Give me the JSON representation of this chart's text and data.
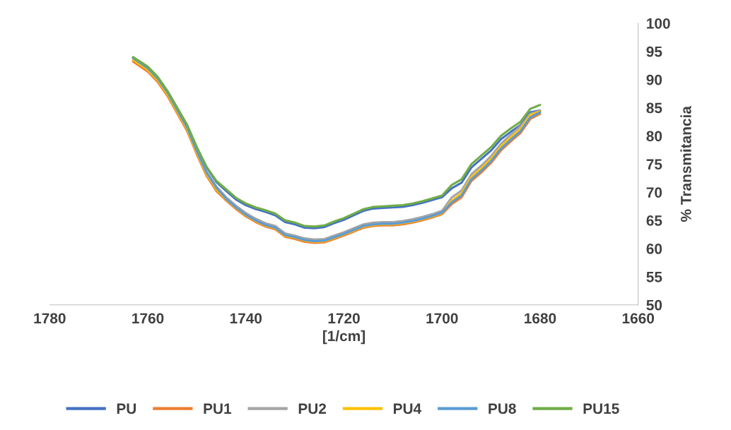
{
  "chart_data": {
    "type": "line",
    "xlabel": "[1/cm]",
    "ylabel": "% Transmitancia",
    "xlim": [
      1780,
      1660
    ],
    "xticks": [
      1780,
      1760,
      1740,
      1720,
      1700,
      1680,
      1660
    ],
    "ylim": [
      50,
      100
    ],
    "yticks": [
      50,
      55,
      60,
      65,
      70,
      75,
      80,
      85,
      90,
      95,
      100
    ],
    "grid": false,
    "legend": "bottom",
    "marker": "none",
    "line_style": "solid",
    "x": [
      1763,
      1760,
      1758,
      1756,
      1754,
      1752,
      1750,
      1748,
      1746,
      1744,
      1742,
      1740,
      1738,
      1736,
      1734,
      1732,
      1730,
      1728,
      1726,
      1724,
      1722,
      1720,
      1718,
      1716,
      1714,
      1712,
      1710,
      1708,
      1706,
      1704,
      1702,
      1700,
      1698,
      1696,
      1694,
      1692,
      1690,
      1688,
      1686,
      1684,
      1682,
      1680
    ],
    "series": [
      {
        "name": "PU",
        "color": "#4472c4",
        "values": [
          93.9,
          92.2,
          90.4,
          87.9,
          84.9,
          81.9,
          77.9,
          74.4,
          71.8,
          70.2,
          68.7,
          67.7,
          67,
          66.5,
          65.9,
          64.7,
          64.3,
          63.7,
          63.6,
          63.8,
          64.5,
          65.1,
          65.9,
          66.7,
          67.1,
          67.2,
          67.3,
          67.4,
          67.7,
          68.1,
          68.6,
          69.1,
          70.7,
          71.7,
          74.4,
          75.9,
          77.4,
          79.4,
          80.7,
          81.9,
          84.2,
          84.5
        ]
      },
      {
        "name": "PU1",
        "color": "#ed7d31",
        "values": [
          93.2,
          91.4,
          89.6,
          87.1,
          84,
          80.9,
          76.7,
          72.9,
          70.2,
          68.5,
          67,
          65.7,
          64.7,
          63.9,
          63.4,
          62.1,
          61.7,
          61.2,
          61,
          61.1,
          61.7,
          62.3,
          63,
          63.7,
          64,
          64.1,
          64.1,
          64.3,
          64.6,
          65,
          65.5,
          66.1,
          67.9,
          69.1,
          72,
          73.5,
          75.2,
          77.4,
          79,
          80.5,
          83,
          83.9
        ]
      },
      {
        "name": "PU2",
        "color": "#a5a5a5",
        "values": [
          93.8,
          92,
          90.2,
          87.7,
          84.6,
          81.5,
          77.3,
          73.6,
          71,
          69.1,
          67.6,
          66.3,
          65.3,
          64.5,
          64,
          62.7,
          62.3,
          61.8,
          61.6,
          61.7,
          62.3,
          62.9,
          63.6,
          64.3,
          64.6,
          64.7,
          64.7,
          64.9,
          65.2,
          65.6,
          66.1,
          66.7,
          69.1,
          70.3,
          73.2,
          74.7,
          76.4,
          78.6,
          80.2,
          81.7,
          83.9,
          84.4
        ]
      },
      {
        "name": "PU4",
        "color": "#ffc000",
        "values": [
          93.5,
          91.7,
          89.9,
          87.4,
          84.3,
          81.2,
          77,
          73.2,
          70.5,
          68.7,
          67.2,
          65.9,
          64.9,
          64.1,
          63.6,
          62.3,
          61.9,
          61.4,
          61.2,
          61.3,
          61.9,
          62.5,
          63.2,
          63.9,
          64.2,
          64.3,
          64.3,
          64.5,
          64.8,
          65.2,
          65.7,
          66.3,
          68.5,
          69.8,
          72.7,
          74.2,
          75.9,
          78.1,
          79.7,
          81.2,
          83.7,
          84.4
        ]
      },
      {
        "name": "PU8",
        "color": "#5b9bd5",
        "values": [
          93.8,
          92,
          90.2,
          87.7,
          84.6,
          81.5,
          77.3,
          73.5,
          70.8,
          68.8,
          67.3,
          66,
          65,
          64.2,
          63.7,
          62.4,
          62,
          61.5,
          61.3,
          61.4,
          62,
          62.6,
          63.3,
          64,
          64.3,
          64.4,
          64.4,
          64.6,
          64.9,
          65.3,
          65.8,
          66.4,
          68.2,
          69.4,
          72.3,
          73.8,
          75.5,
          77.7,
          79.3,
          80.8,
          83.3,
          84.2
        ]
      },
      {
        "name": "PU15",
        "color": "#70ad47",
        "values": [
          94,
          92.3,
          90.5,
          88,
          85,
          82,
          78,
          74.5,
          72,
          70.5,
          69,
          68,
          67.3,
          66.8,
          66.2,
          65,
          64.6,
          64,
          63.9,
          64.1,
          64.8,
          65.4,
          66.2,
          67,
          67.4,
          67.5,
          67.6,
          67.7,
          68,
          68.4,
          68.9,
          69.4,
          71.3,
          72.3,
          75,
          76.5,
          78,
          80,
          81.3,
          82.5,
          84.8,
          85.5
        ]
      }
    ]
  }
}
